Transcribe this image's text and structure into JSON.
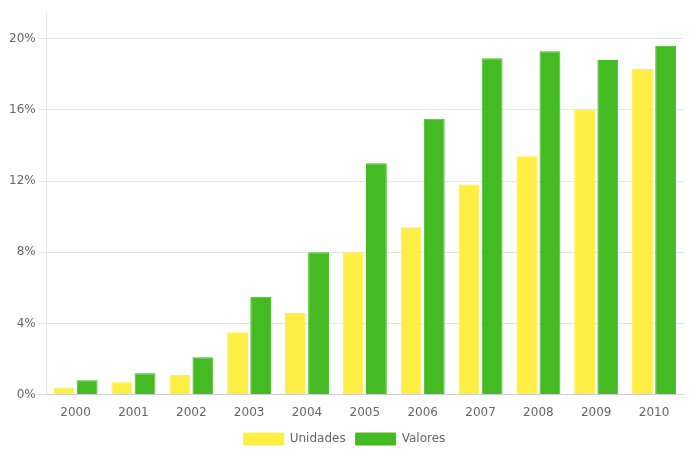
{
  "chart_data": {
    "type": "bar",
    "categories": [
      "2000",
      "2001",
      "2002",
      "2003",
      "2004",
      "2005",
      "2006",
      "2007",
      "2008",
      "2009",
      "2010"
    ],
    "series": [
      {
        "name": "Unidades",
        "color": "#FFEE44",
        "values": [
          0.4,
          0.7,
          1.1,
          3.5,
          4.6,
          8.0,
          9.4,
          11.8,
          13.4,
          16.0,
          18.3
        ]
      },
      {
        "name": "Valores",
        "color": "#44BB22",
        "values": [
          0.8,
          1.2,
          2.1,
          5.5,
          8.0,
          13.0,
          15.5,
          18.9,
          19.3,
          18.8,
          19.6
        ]
      }
    ],
    "ylim": [
      0,
      21.5
    ],
    "yticks": [
      {
        "value": 0,
        "label": "0%"
      },
      {
        "value": 4,
        "label": "4%"
      },
      {
        "value": 8,
        "label": "8%"
      },
      {
        "value": 12,
        "label": "12%"
      },
      {
        "value": 16,
        "label": "16%"
      },
      {
        "value": 20,
        "label": "20%"
      }
    ],
    "grid": true,
    "legend": "bottom"
  }
}
